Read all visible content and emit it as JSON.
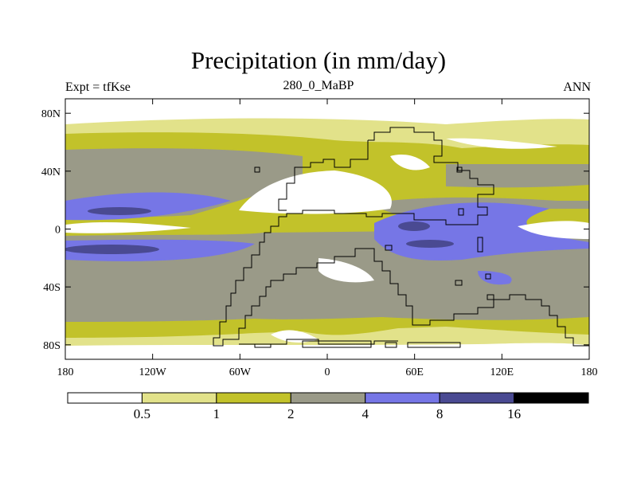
{
  "header": {
    "title": "Precipitation (in mm/day)",
    "left_label": "Expt = tfKse",
    "center_label": "280_0_MaBP",
    "right_label": "ANN"
  },
  "axes": {
    "lat_ticks": [
      {
        "label": "80N",
        "value": 80
      },
      {
        "label": "40N",
        "value": 40
      },
      {
        "label": "0",
        "value": 0
      },
      {
        "label": "40S",
        "value": -40
      },
      {
        "label": "80S",
        "value": -80
      }
    ],
    "lon_ticks": [
      {
        "label": "180",
        "value": -180
      },
      {
        "label": "120W",
        "value": -120
      },
      {
        "label": "60W",
        "value": -60
      },
      {
        "label": "0",
        "value": 0
      },
      {
        "label": "60E",
        "value": 60
      },
      {
        "label": "120E",
        "value": 120
      },
      {
        "label": "180",
        "value": 180
      }
    ],
    "lon_range": [
      -180,
      180
    ],
    "lat_range": [
      -90,
      90
    ]
  },
  "legend": {
    "colors": [
      "#ffffff",
      "#e2e28a",
      "#c2c22a",
      "#9a9a88",
      "#7676e6",
      "#4a4a92",
      "#000000"
    ],
    "labels": [
      "0.5",
      "1",
      "2",
      "4",
      "8",
      "16"
    ]
  }
}
